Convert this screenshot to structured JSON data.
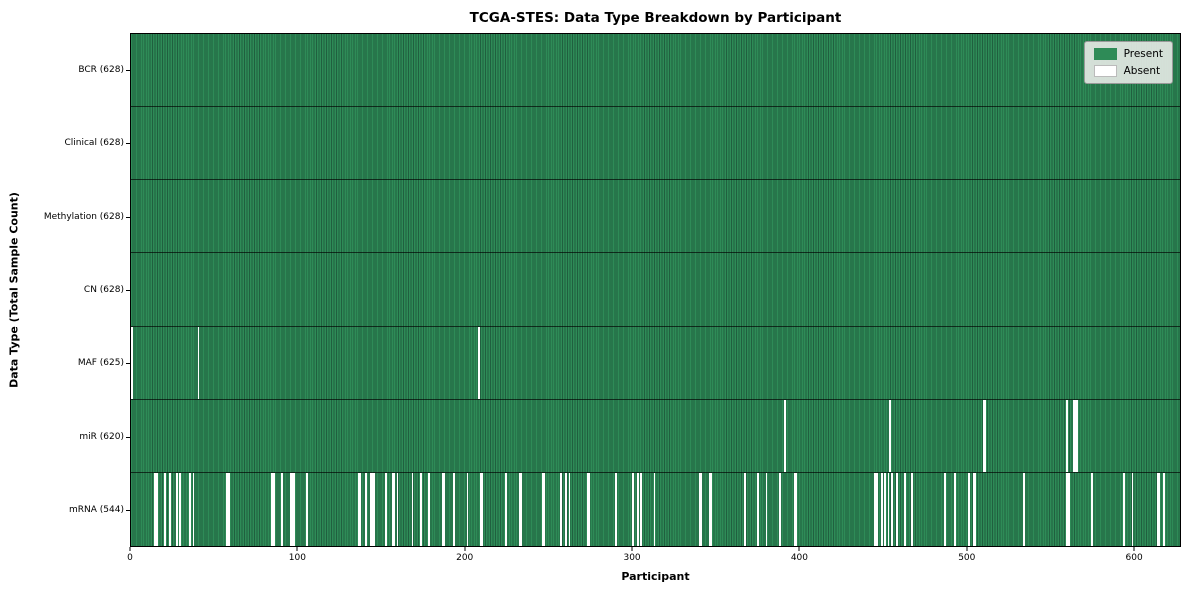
{
  "figure": {
    "title": "TCGA-STES: Data Type Breakdown by Participant",
    "xlabel": "Participant",
    "ylabel": "Data Type (Total Sample Count)"
  },
  "legend": {
    "present_label": "Present",
    "absent_label": "Absent"
  },
  "colors": {
    "present": "#2e8b57",
    "present_stripe_dark": "#20603f",
    "absent": "#ffffff",
    "row_divider": "rgba(0,0,0,0.65)",
    "plot_border": "#000000",
    "legend_bg": "rgba(227,232,227,0.92)"
  },
  "chart_data": {
    "type": "heatmap",
    "title": "TCGA-STES: Data Type Breakdown by Participant",
    "xlabel": "Participant",
    "ylabel": "Data Type (Total Sample Count)",
    "n_participants": 628,
    "x_ticks": [
      0,
      100,
      200,
      300,
      400,
      500,
      600
    ],
    "legend": [
      {
        "label": "Present",
        "color": "#2e8b57"
      },
      {
        "label": "Absent",
        "color": "#ffffff"
      }
    ],
    "rows": [
      {
        "name": "BCR",
        "total": 628,
        "absent": []
      },
      {
        "name": "Clinical",
        "total": 628,
        "absent": []
      },
      {
        "name": "Methylation",
        "total": 628,
        "absent": []
      },
      {
        "name": "CN",
        "total": 628,
        "absent": []
      },
      {
        "name": "MAF",
        "total": 625,
        "absent": [
          0,
          40,
          208
        ]
      },
      {
        "name": "miR",
        "total": 620,
        "absent": [
          391,
          454,
          510,
          511,
          560,
          564,
          565,
          566
        ]
      },
      {
        "name": "mRNA",
        "total": 544,
        "absent": [
          14,
          15,
          20,
          23,
          27,
          29,
          35,
          37,
          57,
          58,
          84,
          85,
          90,
          95,
          96,
          97,
          105,
          136,
          137,
          140,
          143,
          144,
          145,
          152,
          156,
          157,
          159,
          168,
          173,
          178,
          186,
          187,
          193,
          201,
          209,
          210,
          224,
          232,
          233,
          246,
          247,
          257,
          260,
          262,
          273,
          274,
          290,
          300,
          303,
          305,
          313,
          340,
          341,
          346,
          347,
          367,
          375,
          380,
          388,
          397,
          398,
          445,
          446,
          449,
          451,
          453,
          455,
          458,
          463,
          467,
          487,
          493,
          501,
          504,
          505,
          534,
          560,
          561,
          575,
          594,
          599,
          614,
          615,
          618
        ]
      }
    ]
  }
}
